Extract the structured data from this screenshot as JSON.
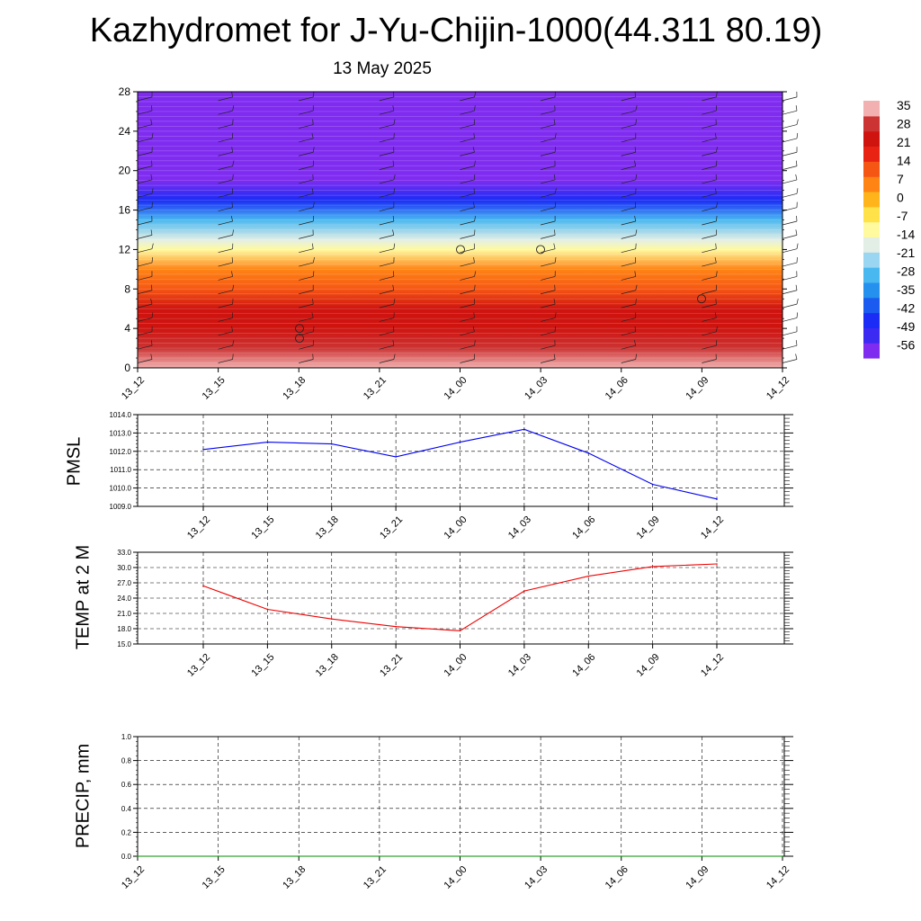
{
  "title": "Kazhydromet for J-Yu-Chijin-1000(44.311 80.19)",
  "date": "13 May 2025",
  "time_labels": [
    "13_12",
    "13_15",
    "13_18",
    "13_21",
    "14_00",
    "14_03",
    "14_06",
    "14_09",
    "14_12"
  ],
  "colorbar": {
    "labels": [
      "35",
      "28",
      "21",
      "14",
      "7",
      "0",
      "-7",
      "-14",
      "-21",
      "-28",
      "-35",
      "-42",
      "-49",
      "-56"
    ]
  },
  "chart_data": [
    {
      "type": "heatmap",
      "title": "",
      "xlabel": "",
      "ylabel": "",
      "x": [
        "13_12",
        "13_15",
        "13_18",
        "13_21",
        "14_00",
        "14_03",
        "14_06",
        "14_09",
        "14_12"
      ],
      "y_ticks": [
        0,
        4,
        8,
        12,
        16,
        20,
        24,
        28
      ],
      "ylim": [
        0,
        28
      ],
      "layers": [
        {
          "height": 0,
          "value": 33
        },
        {
          "height": 2,
          "value": 30
        },
        {
          "height": 4,
          "value": 26
        },
        {
          "height": 6,
          "value": 21
        },
        {
          "height": 8,
          "value": 14
        },
        {
          "height": 10,
          "value": 7
        },
        {
          "height": 12,
          "value": -8
        },
        {
          "height": 13,
          "value": -18
        },
        {
          "height": 15,
          "value": -30
        },
        {
          "height": 17,
          "value": -45
        },
        {
          "height": 19,
          "value": -55
        },
        {
          "height": 23,
          "value": -58
        },
        {
          "height": 28,
          "value": -60
        }
      ],
      "colorscale": [
        "#7f2cf0",
        "#3d2af2",
        "#1a2cf5",
        "#1b5bf0",
        "#2690ee",
        "#49b8f0",
        "#9ad6f2",
        "#e2eee6",
        "#fffaa0",
        "#ffe14a",
        "#ffb41c",
        "#ff8414",
        "#f65613",
        "#e82314",
        "#cf1410",
        "#cc3333",
        "#f2b0b0"
      ],
      "colorbar_range": [
        -56,
        35
      ],
      "overlay": "wind barbs"
    },
    {
      "type": "line",
      "title": "",
      "ylabel": "PMSL",
      "x": [
        "13_12",
        "13_15",
        "13_18",
        "13_21",
        "14_00",
        "14_03",
        "14_06",
        "14_09",
        "14_12"
      ],
      "series": [
        {
          "values": [
            1012.1,
            1012.5,
            1012.4,
            1011.7,
            1012.5,
            1013.2,
            1011.9,
            1010.2,
            1009.4
          ]
        }
      ],
      "ylim": [
        1009.0,
        1014.0
      ],
      "y_ticks": [
        "1009.0",
        "1010.0",
        "1011.0",
        "1012.0",
        "1013.0",
        "1014.0"
      ],
      "line_color": "#0000ee",
      "grid": true
    },
    {
      "type": "line",
      "title": "",
      "ylabel": "TEMP at 2 M",
      "x": [
        "13_12",
        "13_15",
        "13_18",
        "13_21",
        "14_00",
        "14_03",
        "14_06",
        "14_09",
        "14_12"
      ],
      "series": [
        {
          "values": [
            26.4,
            21.8,
            19.9,
            18.4,
            17.6,
            25.4,
            28.3,
            30.2,
            30.7
          ]
        }
      ],
      "ylim": [
        15.0,
        33.0
      ],
      "y_ticks": [
        "15.0",
        "18.0",
        "21.0",
        "24.0",
        "27.0",
        "30.0",
        "33.0"
      ],
      "line_color": "#ee0000",
      "grid": true
    },
    {
      "type": "line",
      "title": "",
      "ylabel": "PRECIP, mm",
      "x": [
        "13_12",
        "13_15",
        "13_18",
        "13_21",
        "14_00",
        "14_03",
        "14_06",
        "14_09",
        "14_12"
      ],
      "series": [
        {
          "values": [
            0,
            0,
            0,
            0,
            0,
            0,
            0,
            0,
            0
          ]
        }
      ],
      "ylim": [
        0.0,
        1.0
      ],
      "y_ticks": [
        "0.0",
        "0.2",
        "0.4",
        "0.6",
        "0.8",
        "1.0"
      ],
      "line_color": "#008800",
      "grid": true
    }
  ]
}
